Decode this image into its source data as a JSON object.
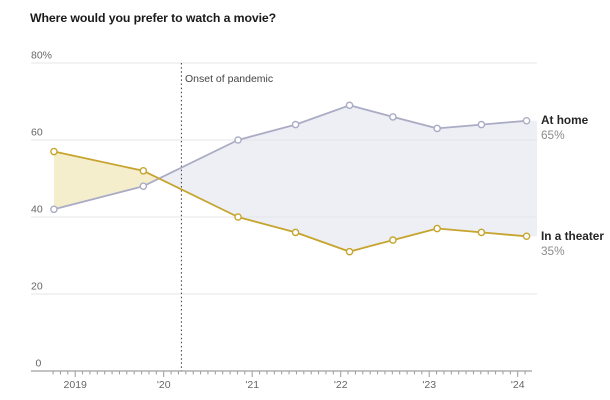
{
  "title": "Where would you prefer to watch a movie?",
  "end_labels": {
    "home_name": "At home",
    "home_value": "65%",
    "theater_name": "In a theater",
    "theater_value": "35%"
  },
  "colors": {
    "home_line": "#a9acc4",
    "theater_line": "#c6a42d",
    "home_area": "#edeff4",
    "theater_area": "#f5eecd",
    "grid": "#e5e5e7",
    "axis": "#9f9f9f",
    "tick": "#999999",
    "tick_label": "#666666",
    "pandemic_line": "#3a3a3a",
    "marker_fill": "#ffffff"
  },
  "chart_data": {
    "type": "line",
    "title": "Where would you prefer to watch a movie?",
    "x": [
      2018.76,
      2019.77,
      2020.84,
      2021.49,
      2022.1,
      2022.59,
      2023.09,
      2023.59,
      2024.1
    ],
    "x_unit": "decimal_year",
    "series": [
      {
        "name": "At home",
        "color": "#a9acc4",
        "area": "#edeff4",
        "values": [
          42,
          48,
          60,
          64,
          69,
          66,
          63,
          64,
          65
        ],
        "end_label": "65%"
      },
      {
        "name": "In a theater",
        "color": "#c6a42d",
        "area": "#f5eecd",
        "values": [
          57,
          52,
          40,
          36,
          31,
          34,
          37,
          36,
          35
        ],
        "end_label": "35%"
      }
    ],
    "ylim": [
      0,
      80
    ],
    "yticks": [
      0,
      20,
      40,
      60,
      80
    ],
    "ytick_labels": [
      "0",
      "20",
      "40",
      "60",
      "80%"
    ],
    "xticks": [
      2019,
      2020,
      2021,
      2022,
      2023,
      2024
    ],
    "xtick_labels": [
      "2019",
      "'20",
      "'21",
      "'22",
      "'23",
      "'24"
    ],
    "minor_tick_unit": "month",
    "annotation": {
      "text": "Onset of pandemic",
      "x": 2020.2,
      "style": "vertical-dotted-line"
    },
    "grid": true,
    "marker": "open-circle",
    "legend_position": "right-end-labels"
  }
}
